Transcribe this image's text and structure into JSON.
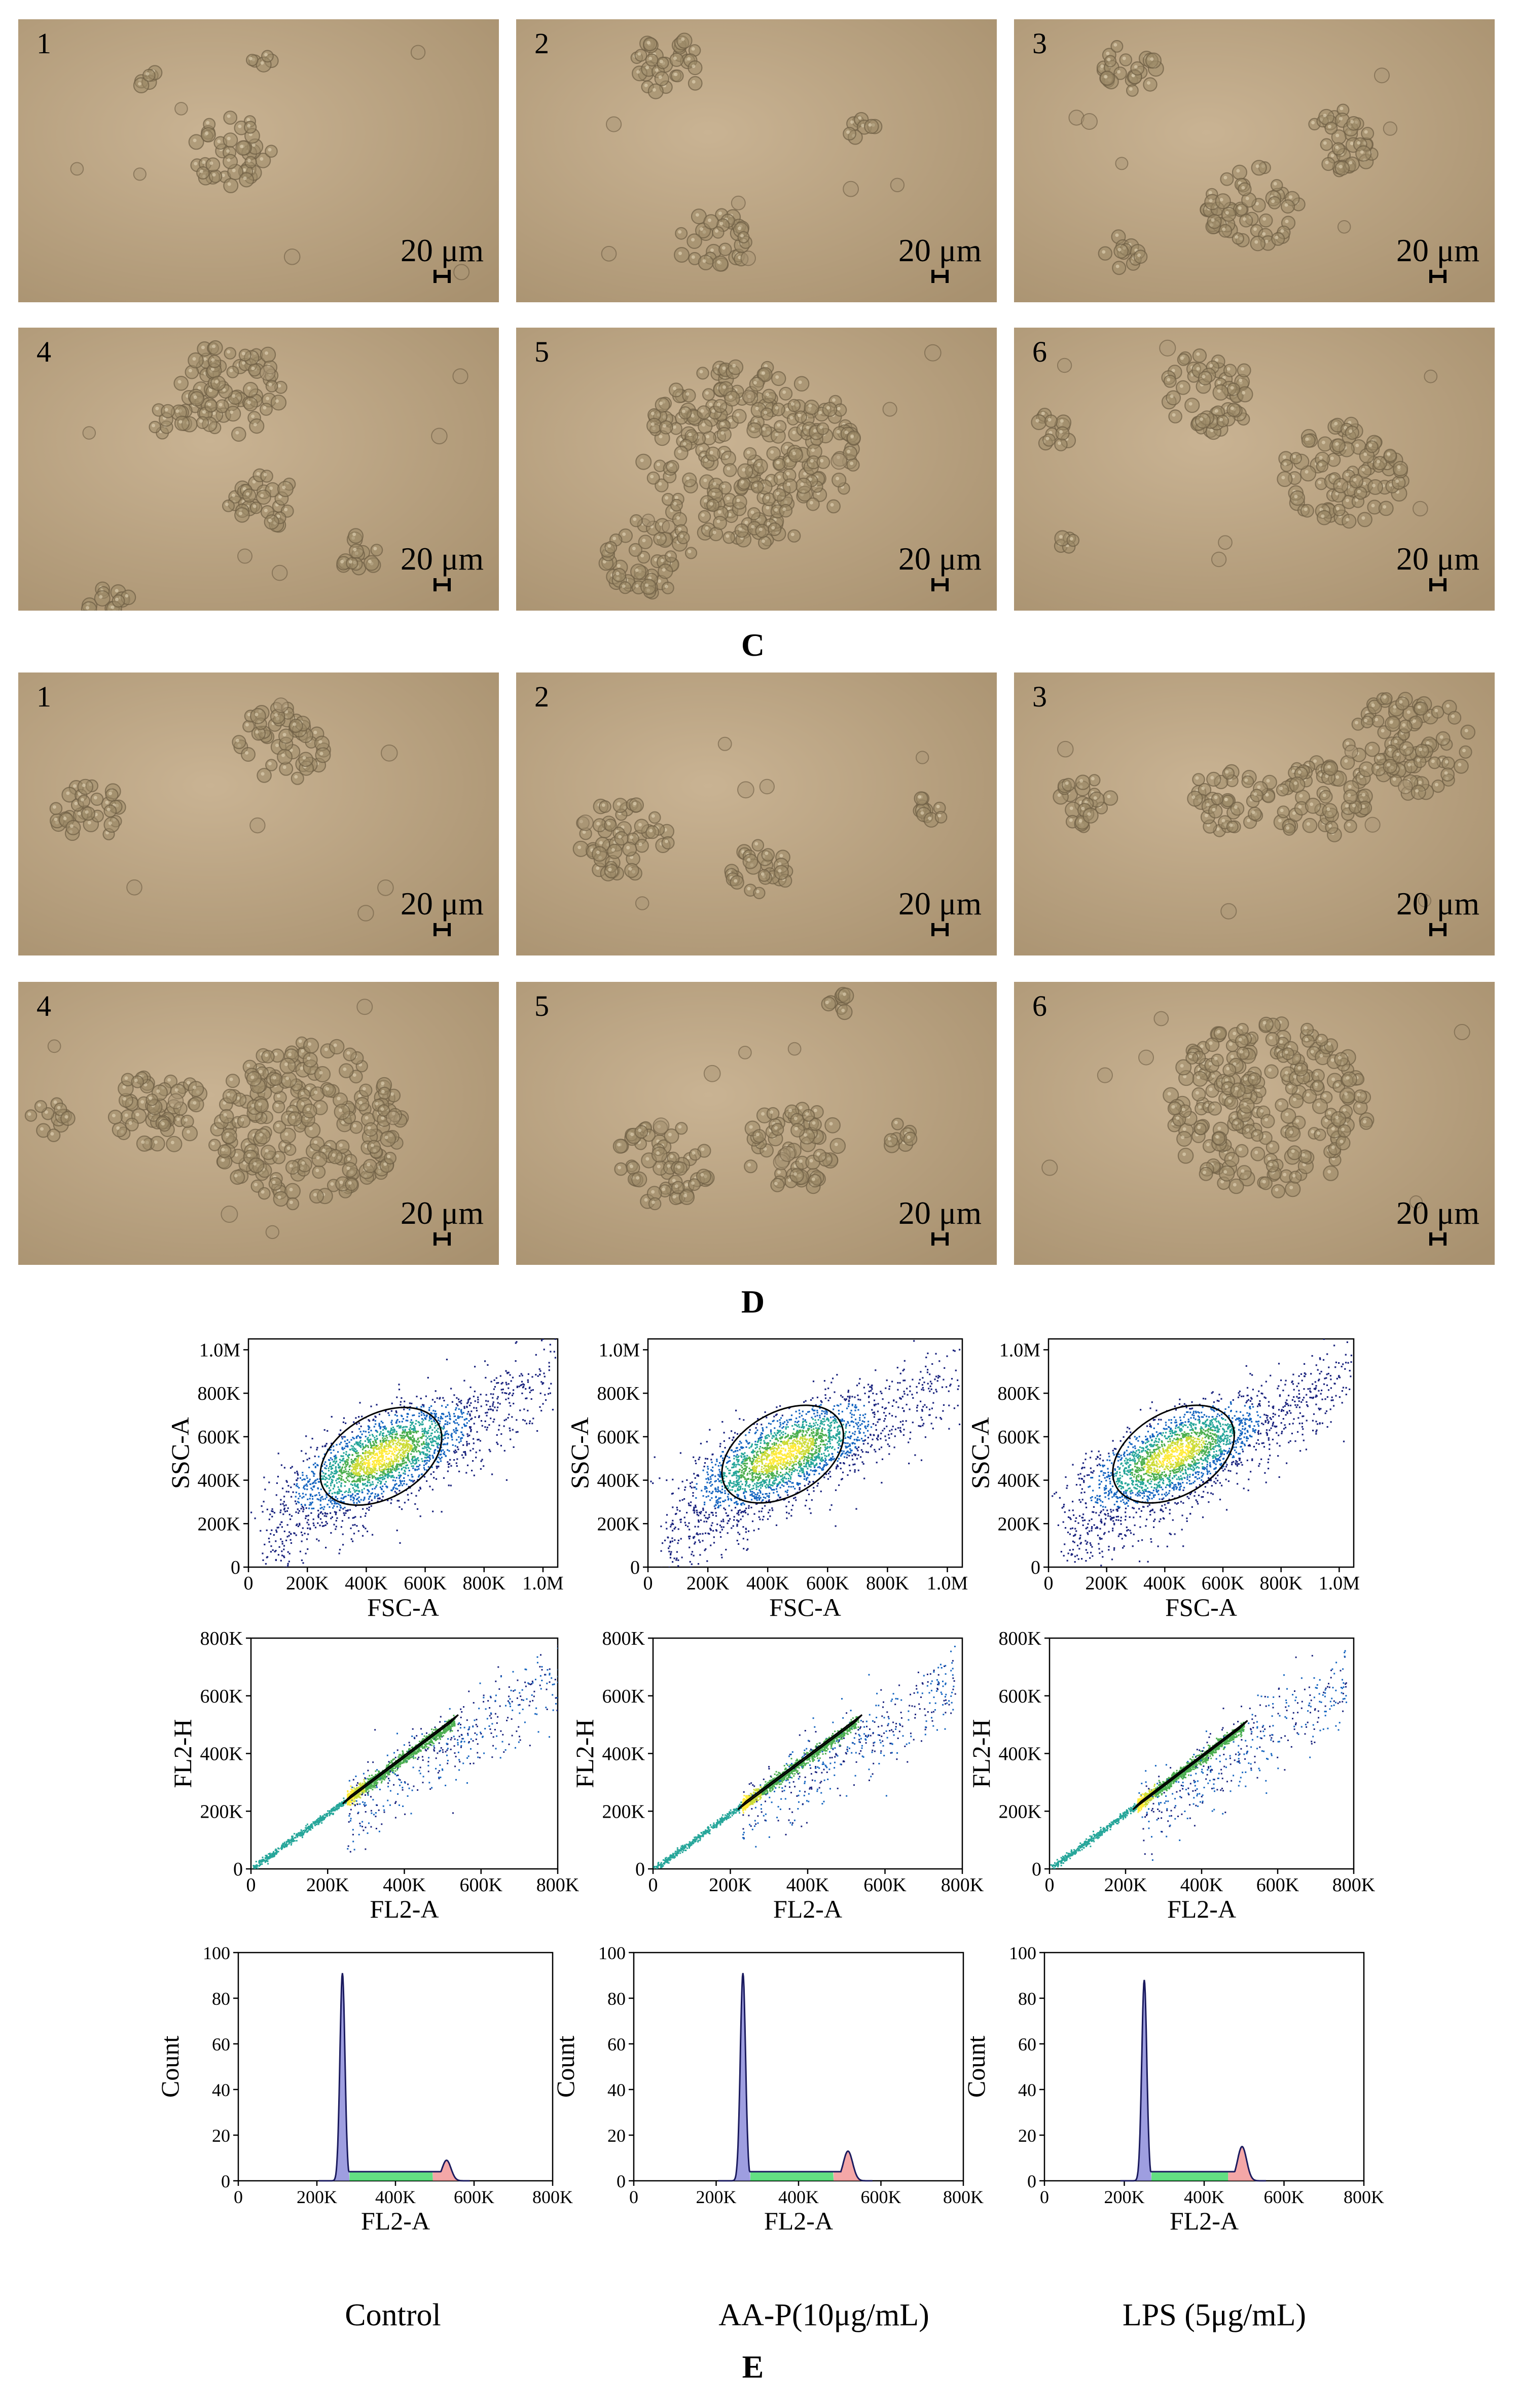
{
  "figure": {
    "panel_c_label": "C",
    "panel_d_label": "D",
    "panel_e_label": "E",
    "scale_bar_text": "20 μm",
    "panel_c": [
      {
        "number": "1"
      },
      {
        "number": "2"
      },
      {
        "number": "3"
      },
      {
        "number": "4"
      },
      {
        "number": "5"
      },
      {
        "number": "6"
      }
    ],
    "panel_d": [
      {
        "number": "1"
      },
      {
        "number": "2"
      },
      {
        "number": "3"
      },
      {
        "number": "4"
      },
      {
        "number": "5"
      },
      {
        "number": "6"
      }
    ],
    "conditions": [
      "Control",
      "AA-P(10μg/mL)",
      "LPS (5μg/mL)"
    ]
  },
  "chart_data": [
    {
      "type": "scatter",
      "group": "Control",
      "xlabel": "FSC-A",
      "ylabel": "SSC-A",
      "x_ticks": [
        "0",
        "200K",
        "400K",
        "600K",
        "800K",
        "1.0M"
      ],
      "y_ticks": [
        "0",
        "200K",
        "400K",
        "600K",
        "800K",
        "1.0M"
      ],
      "xlim": [
        0,
        1050000
      ],
      "ylim": [
        0,
        1050000
      ],
      "gate": {
        "shape": "ellipse",
        "center": [
          450000,
          510000
        ],
        "angle_deg": 30
      }
    },
    {
      "type": "scatter",
      "group": "AA-P(10μg/mL)",
      "xlabel": "FSC-A",
      "ylabel": "SSC-A",
      "x_ticks": [
        "0",
        "200K",
        "400K",
        "600K",
        "800K",
        "1.0M"
      ],
      "y_ticks": [
        "0",
        "200K",
        "400K",
        "600K",
        "800K",
        "1.0M"
      ],
      "xlim": [
        0,
        1050000
      ],
      "ylim": [
        0,
        1050000
      ],
      "gate": {
        "shape": "ellipse",
        "center": [
          450000,
          520000
        ],
        "angle_deg": 30
      }
    },
    {
      "type": "scatter",
      "group": "LPS (5μg/mL)",
      "xlabel": "FSC-A",
      "ylabel": "SSC-A",
      "x_ticks": [
        "0",
        "200K",
        "400K",
        "600K",
        "800K",
        "1.0M"
      ],
      "y_ticks": [
        "0",
        "200K",
        "400K",
        "600K",
        "800K",
        "1.0M"
      ],
      "xlim": [
        0,
        1050000
      ],
      "ylim": [
        0,
        1050000
      ],
      "gate": {
        "shape": "ellipse",
        "center": [
          430000,
          520000
        ],
        "angle_deg": 30
      }
    },
    {
      "type": "scatter",
      "group": "Control",
      "xlabel": "FL2-A",
      "ylabel": "FL2-H",
      "x_ticks": [
        "0",
        "200K",
        "400K",
        "600K",
        "800K"
      ],
      "y_ticks": [
        "0",
        "200K",
        "400K",
        "600K",
        "800K"
      ],
      "xlim": [
        0,
        800000
      ],
      "ylim": [
        0,
        800000
      ],
      "gate": {
        "shape": "polygon",
        "from": [
          250000,
          240000
        ],
        "to": [
          530000,
          520000
        ]
      }
    },
    {
      "type": "scatter",
      "group": "AA-P(10μg/mL)",
      "xlabel": "FL2-A",
      "ylabel": "FL2-H",
      "x_ticks": [
        "0",
        "200K",
        "400K",
        "600K",
        "800K"
      ],
      "y_ticks": [
        "0",
        "200K",
        "400K",
        "600K",
        "800K"
      ],
      "xlim": [
        0,
        800000
      ],
      "ylim": [
        0,
        800000
      ],
      "gate": {
        "shape": "polygon",
        "from": [
          230000,
          220000
        ],
        "to": [
          530000,
          520000
        ]
      }
    },
    {
      "type": "scatter",
      "group": "LPS (5μg/mL)",
      "xlabel": "FL2-A",
      "ylabel": "FL2-H",
      "x_ticks": [
        "0",
        "200K",
        "400K",
        "600K",
        "800K"
      ],
      "y_ticks": [
        "0",
        "200K",
        "400K",
        "600K",
        "800K"
      ],
      "xlim": [
        0,
        800000
      ],
      "ylim": [
        0,
        800000
      ],
      "gate": {
        "shape": "polygon",
        "from": [
          230000,
          220000
        ],
        "to": [
          510000,
          500000
        ]
      }
    },
    {
      "type": "area",
      "group": "Control",
      "xlabel": "FL2-A",
      "ylabel": "Count",
      "x_ticks": [
        "0",
        "200K",
        "400K",
        "600K",
        "800K"
      ],
      "y_ticks": [
        "0",
        "20",
        "40",
        "60",
        "80",
        "100"
      ],
      "xlim": [
        0,
        800000
      ],
      "ylim": [
        0,
        100
      ],
      "g1_peak": {
        "x": 265000,
        "count": 91
      },
      "s_phase_level": 4,
      "g2_peak": {
        "x": 530000,
        "count": 9
      }
    },
    {
      "type": "area",
      "group": "AA-P(10μg/mL)",
      "xlabel": "FL2-A",
      "ylabel": "Count",
      "x_ticks": [
        "0",
        "200K",
        "400K",
        "600K",
        "800K"
      ],
      "y_ticks": [
        "0",
        "20",
        "40",
        "60",
        "80",
        "100"
      ],
      "xlim": [
        0,
        800000
      ],
      "ylim": [
        0,
        100
      ],
      "g1_peak": {
        "x": 265000,
        "count": 91
      },
      "s_phase_level": 4,
      "g2_peak": {
        "x": 520000,
        "count": 13
      }
    },
    {
      "type": "area",
      "group": "LPS (5μg/mL)",
      "xlabel": "FL2-A",
      "ylabel": "Count",
      "x_ticks": [
        "0",
        "200K",
        "400K",
        "600K",
        "800K"
      ],
      "y_ticks": [
        "0",
        "20",
        "40",
        "60",
        "80",
        "100"
      ],
      "xlim": [
        0,
        800000
      ],
      "ylim": [
        0,
        100
      ],
      "g1_peak": {
        "x": 250000,
        "count": 88
      },
      "s_phase_level": 4,
      "g2_peak": {
        "x": 495000,
        "count": 15
      }
    }
  ]
}
